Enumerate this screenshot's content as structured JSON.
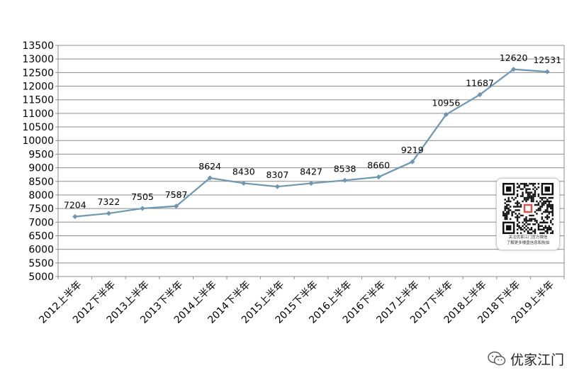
{
  "chart_data": {
    "type": "line",
    "categories": [
      "2012上半年",
      "2012下半年",
      "2013上半年",
      "2013下半年",
      "2014上半年",
      "2014下半年",
      "2015上半年",
      "2015下半年",
      "2016上半年",
      "2016下半年",
      "2017上半年",
      "2017下半年",
      "2018上半年",
      "2018下半年",
      "2019上半年"
    ],
    "values": [
      7204,
      7322,
      7505,
      7587,
      8624,
      8430,
      8307,
      8427,
      8538,
      8660,
      9219,
      10956,
      11687,
      12620,
      12531
    ],
    "ylim": [
      5000,
      13500
    ],
    "yticks": [
      5000,
      5500,
      6000,
      6500,
      7000,
      7500,
      8000,
      8500,
      9000,
      9500,
      10000,
      10500,
      11000,
      11500,
      12000,
      12500,
      13000,
      13500
    ],
    "grid": true,
    "line_color": "#6b96b4",
    "marker": "diamond"
  },
  "qr_card": {
    "line1": "关注优家江门官方微信",
    "line2": "了解更多楼盘信息和航拍"
  },
  "brand": {
    "name": "优家江门",
    "icon": "wechat-icon"
  }
}
